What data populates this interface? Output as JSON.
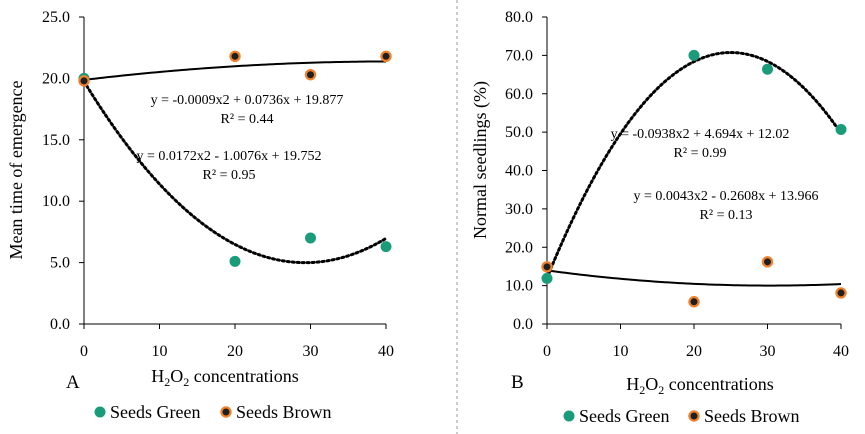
{
  "chart_data": [
    {
      "type": "scatter",
      "panel_label": "A",
      "xlabel": {
        "main": "H",
        "sub1": "2",
        "mid": "O",
        "sub2": "2",
        "rest": " concentrations"
      },
      "ylabel": "Mean time of emergence",
      "xlim": [
        0,
        40
      ],
      "ylim": [
        0,
        25
      ],
      "x_ticks": [
        "0",
        "10",
        "20",
        "30",
        "40"
      ],
      "y_ticks": [
        "0.0",
        "5.0",
        "10.0",
        "15.0",
        "20.0",
        "25.0"
      ],
      "grid": false,
      "legend_position": "bottom",
      "series": [
        {
          "name": "Seeds Green",
          "color": "#1a9c7b",
          "x": [
            0,
            20,
            30,
            40
          ],
          "y": [
            20.0,
            5.1,
            7.0,
            6.3
          ],
          "trendline": {
            "style": "dotted",
            "coef": [
              0.0172,
              -1.0076,
              19.752
            ],
            "equation": "y = 0.0172x2 - 1.0076x + 19.752",
            "r2": "R² = 0.95"
          }
        },
        {
          "name": "Seeds Brown",
          "color": "#1f1f1f",
          "edge_color": "#f0812c",
          "x": [
            0,
            20,
            30,
            40
          ],
          "y": [
            19.8,
            21.8,
            20.3,
            21.8
          ],
          "trendline": {
            "style": "solid",
            "coef": [
              -0.0009,
              0.0736,
              19.877
            ],
            "equation": "y = -0.0009x2 + 0.0736x + 19.877",
            "r2": "R² = 0.44"
          }
        }
      ]
    },
    {
      "type": "scatter",
      "panel_label": "B",
      "xlabel": {
        "main": "H",
        "sub1": "2",
        "mid": "O",
        "sub2": "2",
        "rest": " concentrations"
      },
      "ylabel": "Normal seedlings (%)",
      "xlim": [
        0,
        40
      ],
      "ylim": [
        0,
        80
      ],
      "x_ticks": [
        "0",
        "10",
        "20",
        "30",
        "40"
      ],
      "y_ticks": [
        "0.0",
        "10.0",
        "20.0",
        "30.0",
        "40.0",
        "50.0",
        "60.0",
        "70.0",
        "80.0"
      ],
      "grid": false,
      "legend_position": "bottom",
      "series": [
        {
          "name": "Seeds Green",
          "color": "#1a9c7b",
          "x": [
            0,
            20,
            30,
            40
          ],
          "y": [
            11.9,
            70.0,
            66.4,
            50.7
          ],
          "trendline": {
            "style": "dotted",
            "coef": [
              -0.0938,
              4.694,
              12.02
            ],
            "equation": "y = -0.0938x2 + 4.694x + 12.02",
            "r2": "R² = 0.99"
          }
        },
        {
          "name": "Seeds Brown",
          "color": "#1f1f1f",
          "edge_color": "#f0812c",
          "x": [
            0,
            20,
            30,
            40
          ],
          "y": [
            14.9,
            5.8,
            16.2,
            8.1
          ],
          "trendline": {
            "style": "solid",
            "coef": [
              0.0043,
              -0.2608,
              13.966
            ],
            "equation": "y = 0.0043x2 - 0.2608x + 13.966",
            "r2": "R² = 0.13"
          }
        }
      ]
    }
  ]
}
